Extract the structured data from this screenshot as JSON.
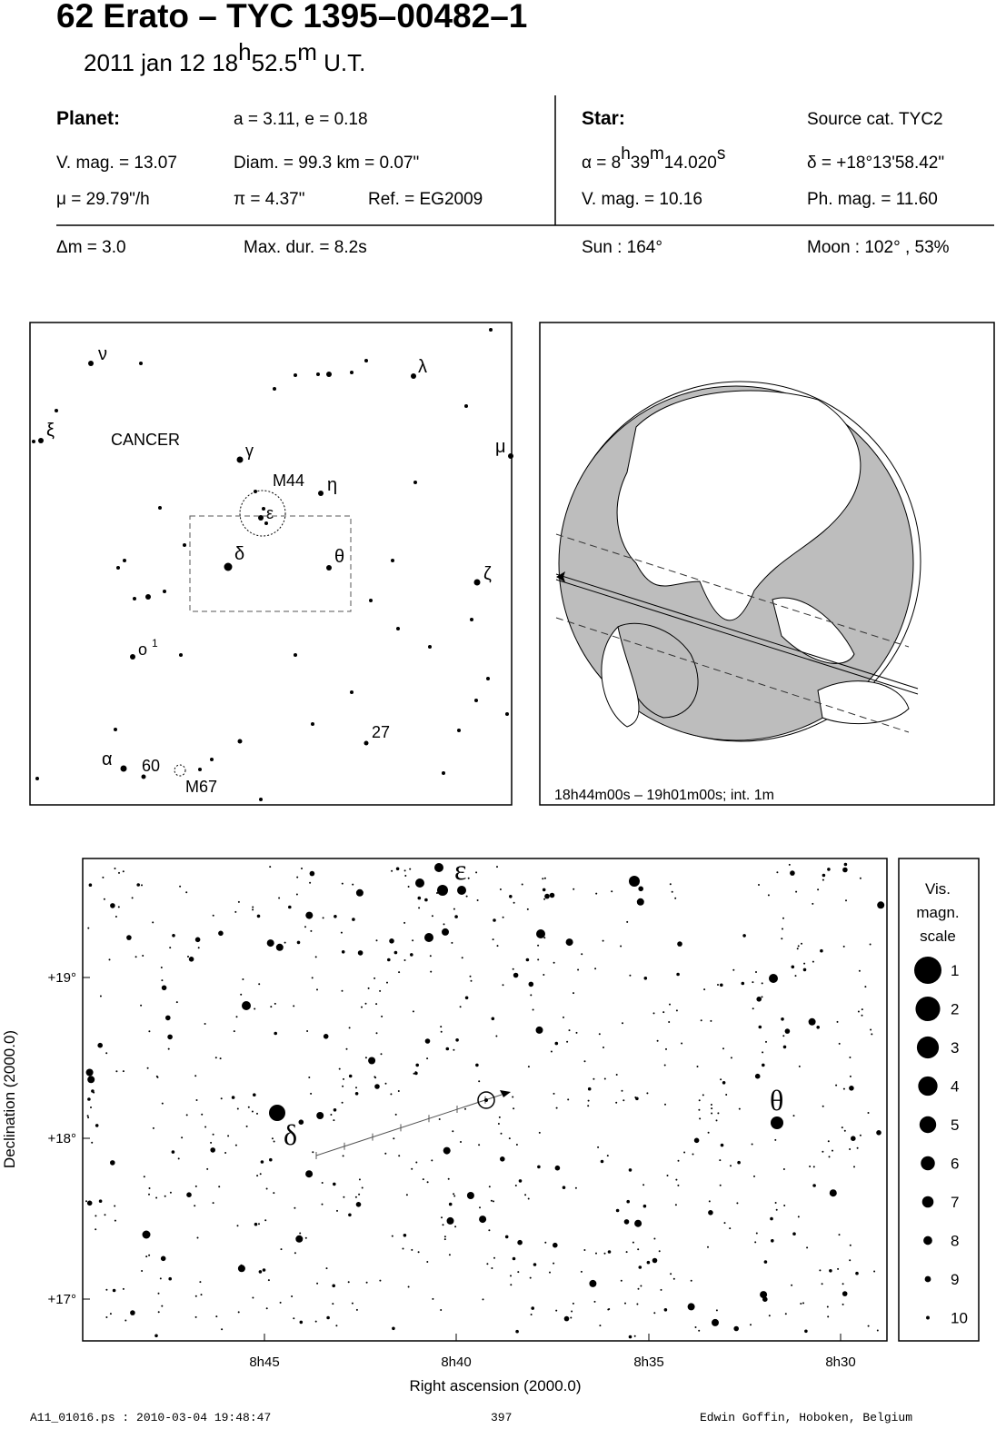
{
  "header": {
    "title": "62 Erato  –  TYC 1395–00482–1",
    "date": [
      "2011 jan 12  18",
      "h",
      "52.5",
      "m",
      " U.T."
    ]
  },
  "planet": {
    "label": "Planet:",
    "orbit": "a = 3.11, e = 0.18",
    "vmag": "V. mag. = 13.07",
    "diam": "Diam. = 99.3 km = 0.07\"",
    "mu": "μ =  29.79\"/h",
    "pi": "π =  4.37\"",
    "ref": "Ref. = EG2009"
  },
  "star": {
    "label": "Star:",
    "source": "Source cat.  TYC2",
    "ra": [
      "α =  8",
      "h",
      "39",
      "m",
      "14.020",
      "s"
    ],
    "dec": "δ = +18°13'58.42\"",
    "vmag": "V. mag. = 10.16",
    "phmag": "Ph. mag. = 11.60"
  },
  "event": {
    "dm": "Δm = 3.0",
    "maxdur": "Max. dur. = 8.2s",
    "sun": "Sun : 164°",
    "moon": "Moon : 102° , 53%"
  },
  "finder": {
    "labels": [
      "ν",
      "λ",
      "ξ",
      "μ",
      "CANCER",
      "γ",
      "M44",
      "η",
      "ε",
      "δ",
      "θ",
      "ζ",
      "ο",
      "1",
      "27",
      "α",
      "60",
      "M67"
    ]
  },
  "globe": {
    "caption": "18h44m00s – 19h01m00s; int.  1m"
  },
  "detail": {
    "x_ticks": [
      "8h45",
      "8h40",
      "8h35",
      "8h30"
    ],
    "y_ticks": [
      "+19°",
      "+18°",
      "+17°"
    ],
    "xlabel": "Right ascension (2000.0)",
    "ylabel": "Declination (2000.0)",
    "labels": [
      "ε",
      "δ",
      "θ"
    ]
  },
  "legend": {
    "title": [
      "Vis.",
      "magn.",
      "scale"
    ],
    "entries": [
      "1",
      "2",
      "3",
      "4",
      "5",
      "6",
      "7",
      "8",
      "9",
      "10"
    ]
  },
  "footer": {
    "file": "A11_01016.ps : 2010-03-04 19:48:47",
    "page": "397",
    "author": "Edwin Goffin, Hoboken, Belgium"
  }
}
